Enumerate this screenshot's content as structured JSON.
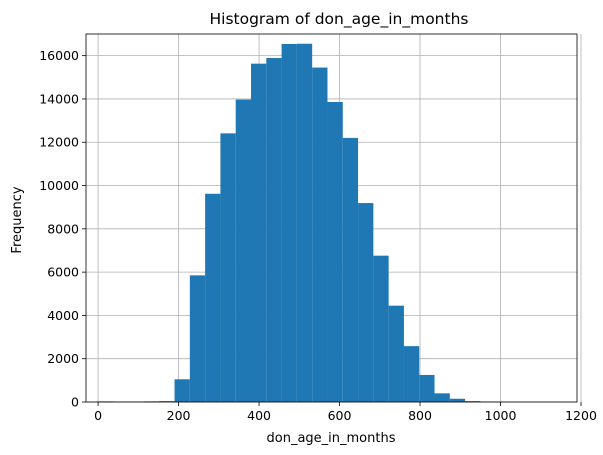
{
  "chart_data": {
    "type": "bar",
    "title": "Histogram of don_age_in_months",
    "xlabel": "don_age_in_months",
    "ylabel": "Frequency",
    "xlim": [
      -30,
      1190
    ],
    "ylim": [
      0,
      17000
    ],
    "grid": true,
    "bar_color": "#1f77b4",
    "bin_edges": [
      0,
      38,
      76,
      114,
      152,
      190,
      228,
      266,
      304,
      342,
      380,
      418,
      456,
      494,
      532,
      570,
      608,
      646,
      684,
      722,
      760,
      798,
      836,
      874,
      912,
      950,
      988,
      1026,
      1064,
      1102,
      1140
    ],
    "values": [
      30,
      20,
      20,
      30,
      40,
      1050,
      5850,
      9620,
      12410,
      13970,
      15630,
      15890,
      16540,
      16550,
      15450,
      13860,
      12200,
      9190,
      6760,
      4450,
      2580,
      1250,
      400,
      150,
      40,
      20,
      10,
      10,
      10,
      10
    ],
    "x_ticks": [
      0,
      200,
      400,
      600,
      800,
      1000,
      1200
    ],
    "x_tick_labels": [
      "0",
      "200",
      "400",
      "600",
      "800",
      "1000",
      "1200"
    ],
    "y_ticks": [
      0,
      2000,
      4000,
      6000,
      8000,
      10000,
      12000,
      14000,
      16000
    ],
    "y_tick_labels": [
      "0",
      "2000",
      "4000",
      "6000",
      "8000",
      "10000",
      "12000",
      "14000",
      "16000"
    ]
  }
}
